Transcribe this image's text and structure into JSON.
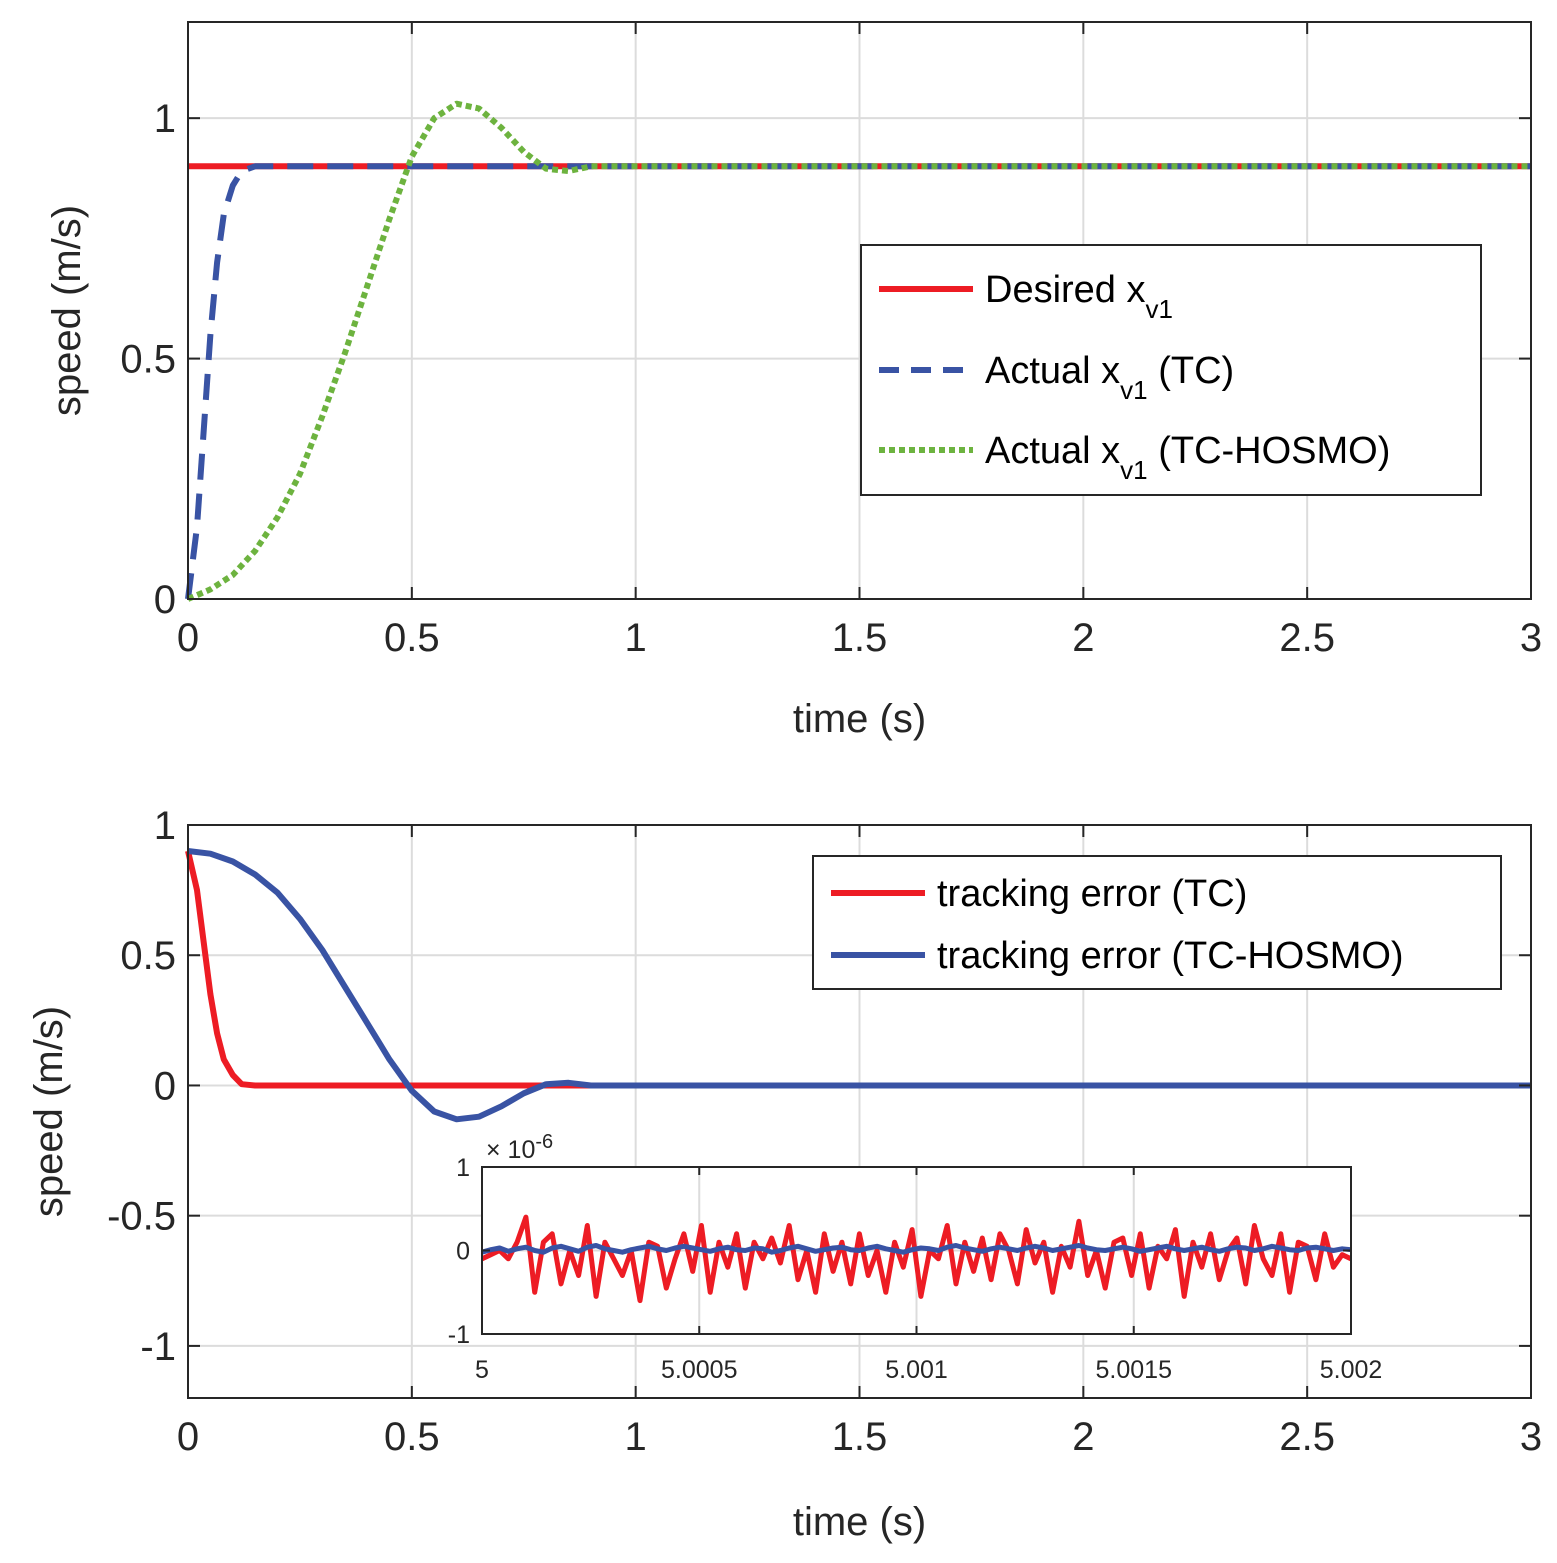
{
  "chart_data": [
    {
      "type": "line",
      "xlabel": "time (s)",
      "ylabel": "speed (m/s)",
      "xlim": [
        0,
        3
      ],
      "ylim": [
        0,
        1.2
      ],
      "xticks": [
        "0",
        "0.5",
        "1",
        "1.5",
        "2",
        "2.5",
        "3"
      ],
      "yticks": [
        "0",
        "0.5",
        "1"
      ],
      "grid": true,
      "legend_position": "middle-right",
      "legend": [
        {
          "prefix": "Desired x",
          "sub": "v1",
          "suffix": ""
        },
        {
          "prefix": "Actual x",
          "sub": "v1",
          "suffix": " (TC)"
        },
        {
          "prefix": "Actual x",
          "sub": "v1",
          "suffix": " (TC-HOSMO)"
        }
      ],
      "series": [
        {
          "name": "Desired x_v1",
          "color": "#ED1C24",
          "style": "solid",
          "points": [
            [
              0,
              0.9
            ],
            [
              3,
              0.9
            ]
          ]
        },
        {
          "name": "Actual x_v1 (TC)",
          "color": "#3953A4",
          "style": "dashed",
          "points": [
            [
              0,
              0
            ],
            [
              0.02,
              0.15
            ],
            [
              0.035,
              0.35
            ],
            [
              0.05,
              0.55
            ],
            [
              0.065,
              0.7
            ],
            [
              0.08,
              0.8
            ],
            [
              0.1,
              0.86
            ],
            [
              0.12,
              0.89
            ],
            [
              0.15,
              0.9
            ],
            [
              3,
              0.9
            ]
          ]
        },
        {
          "name": "Actual x_v1 (TC-HOSMO)",
          "color": "#6DB33F",
          "style": "dotted",
          "points": [
            [
              0,
              0
            ],
            [
              0.05,
              0.02
            ],
            [
              0.1,
              0.05
            ],
            [
              0.15,
              0.1
            ],
            [
              0.2,
              0.17
            ],
            [
              0.25,
              0.26
            ],
            [
              0.3,
              0.38
            ],
            [
              0.35,
              0.51
            ],
            [
              0.4,
              0.65
            ],
            [
              0.45,
              0.79
            ],
            [
              0.5,
              0.92
            ],
            [
              0.55,
              1.0
            ],
            [
              0.6,
              1.03
            ],
            [
              0.65,
              1.02
            ],
            [
              0.7,
              0.98
            ],
            [
              0.75,
              0.93
            ],
            [
              0.8,
              0.895
            ],
            [
              0.85,
              0.89
            ],
            [
              0.9,
              0.9
            ],
            [
              3,
              0.9
            ]
          ]
        }
      ]
    },
    {
      "type": "line",
      "xlabel": "time (s)",
      "ylabel": "speed (m/s)",
      "xlim": [
        0,
        3
      ],
      "ylim": [
        -1.2,
        1
      ],
      "xticks": [
        "0",
        "0.5",
        "1",
        "1.5",
        "2",
        "2.5",
        "3"
      ],
      "yticks": [
        "-1",
        "-0.5",
        "0",
        "0.5",
        "1"
      ],
      "grid": true,
      "legend_position": "top-right",
      "legend": [
        {
          "prefix": "tracking error (TC)",
          "sub": "",
          "suffix": ""
        },
        {
          "prefix": "tracking error (TC-HOSMO)",
          "sub": "",
          "suffix": ""
        }
      ],
      "series": [
        {
          "name": "tracking error (TC)",
          "color": "#ED1C24",
          "style": "solid",
          "points": [
            [
              0,
              0.9
            ],
            [
              0.02,
              0.75
            ],
            [
              0.035,
              0.55
            ],
            [
              0.05,
              0.35
            ],
            [
              0.065,
              0.2
            ],
            [
              0.08,
              0.1
            ],
            [
              0.1,
              0.04
            ],
            [
              0.12,
              0.005
            ],
            [
              0.15,
              0
            ],
            [
              3,
              0
            ]
          ]
        },
        {
          "name": "tracking error (TC-HOSMO)",
          "color": "#3953A4",
          "style": "solid",
          "points": [
            [
              0,
              0.9
            ],
            [
              0.05,
              0.89
            ],
            [
              0.1,
              0.86
            ],
            [
              0.15,
              0.81
            ],
            [
              0.2,
              0.74
            ],
            [
              0.25,
              0.64
            ],
            [
              0.3,
              0.52
            ],
            [
              0.35,
              0.38
            ],
            [
              0.4,
              0.24
            ],
            [
              0.45,
              0.1
            ],
            [
              0.5,
              -0.02
            ],
            [
              0.55,
              -0.1
            ],
            [
              0.6,
              -0.13
            ],
            [
              0.65,
              -0.12
            ],
            [
              0.7,
              -0.08
            ],
            [
              0.75,
              -0.03
            ],
            [
              0.8,
              0.005
            ],
            [
              0.85,
              0.01
            ],
            [
              0.9,
              0
            ],
            [
              3,
              0
            ]
          ]
        }
      ],
      "inset": {
        "xlim": [
          5,
          5.002
        ],
        "ylim": [
          -1,
          1
        ],
        "xticks": [
          "5",
          "5.0005",
          "5.001",
          "5.0015",
          "5.002"
        ],
        "yticks": [
          "-1",
          "0",
          "1"
        ],
        "exponent_label": "× 10",
        "exponent": "-6",
        "series": [
          {
            "name": "tracking error (TC)",
            "color": "#ED1C24",
            "values": [
              -0.1,
              -0.05,
              0.0,
              -0.1,
              0.1,
              0.4,
              -0.5,
              0.1,
              0.2,
              -0.4,
              0.0,
              -0.3,
              0.3,
              -0.55,
              0.1,
              -0.1,
              -0.3,
              0.0,
              -0.6,
              0.1,
              0.05,
              -0.45,
              -0.1,
              0.2,
              -0.25,
              0.3,
              -0.5,
              0.1,
              -0.2,
              0.2,
              -0.45,
              0.1,
              -0.1,
              0.15,
              -0.15,
              0.3,
              -0.35,
              0.0,
              -0.5,
              0.2,
              -0.25,
              0.1,
              -0.4,
              0.2,
              -0.3,
              0.0,
              -0.5,
              0.1,
              -0.2,
              0.25,
              -0.55,
              0.0,
              -0.1,
              0.3,
              -0.4,
              0.1,
              -0.25,
              0.15,
              -0.35,
              0.2,
              0.0,
              -0.4,
              0.25,
              -0.15,
              0.1,
              -0.5,
              0.05,
              -0.2,
              0.35,
              -0.3,
              0.0,
              -0.45,
              0.1,
              0.15,
              -0.3,
              0.2,
              -0.45,
              0.05,
              -0.1,
              0.25,
              -0.55,
              0.1,
              -0.2,
              0.2,
              -0.35,
              0.0,
              0.15,
              -0.4,
              0.3,
              -0.1,
              -0.3,
              0.2,
              -0.5,
              0.1,
              0.05,
              -0.35,
              0.2,
              -0.2,
              -0.05,
              -0.1
            ]
          },
          {
            "name": "tracking error (TC-HOSMO)",
            "color": "#3953A4",
            "values": [
              -0.02,
              0.01,
              0.03,
              -0.01,
              0.02,
              0.04,
              0.0,
              -0.02,
              0.03,
              0.05,
              0.02,
              -0.01,
              0.04,
              0.06,
              0.02,
              0.0,
              -0.02,
              0.01,
              0.03,
              0.05,
              0.02,
              0.0,
              0.03,
              0.05,
              0.03,
              0.01,
              -0.01,
              0.02,
              0.04,
              0.01,
              0.0,
              0.03,
              0.02,
              -0.02,
              0.0,
              0.03,
              0.05,
              0.02,
              -0.01,
              0.01,
              0.03,
              0.04,
              0.01,
              0.0,
              0.03,
              0.05,
              0.02,
              0.0,
              -0.02,
              0.01,
              0.03,
              0.02,
              0.0,
              0.04,
              0.06,
              0.03,
              0.01,
              -0.01,
              0.02,
              0.04,
              0.02,
              0.0,
              0.03,
              0.05,
              0.03,
              0.0,
              0.02,
              0.04,
              0.06,
              0.03,
              0.01,
              0.0,
              0.02,
              0.04,
              0.02,
              -0.01,
              0.01,
              0.03,
              0.05,
              0.02,
              0.0,
              0.02,
              0.04,
              0.01,
              -0.01,
              0.02,
              0.04,
              0.03,
              0.0,
              0.02,
              0.05,
              0.03,
              0.01,
              0.0,
              0.03,
              0.04,
              0.02,
              0.0,
              0.02,
              0.01
            ]
          }
        ]
      }
    }
  ]
}
